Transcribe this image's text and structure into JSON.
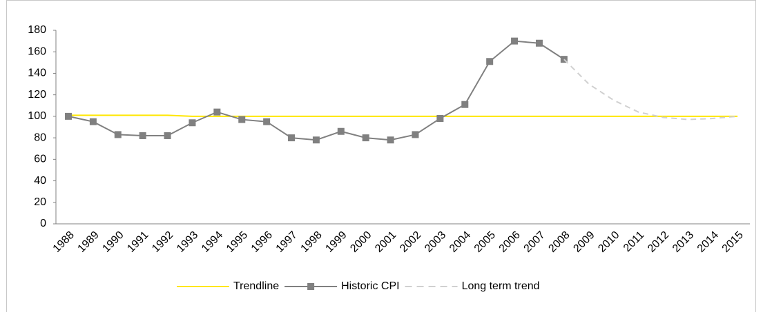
{
  "chart_data": {
    "type": "line",
    "categories": [
      "1988",
      "1989",
      "1990",
      "1991",
      "1992",
      "1993",
      "1994",
      "1995",
      "1996",
      "1997",
      "1998",
      "1999",
      "2000",
      "2001",
      "2002",
      "2003",
      "2004",
      "2005",
      "2006",
      "2007",
      "2008",
      "2009",
      "2010",
      "2011",
      "2012",
      "2013",
      "2014",
      "2015"
    ],
    "series": [
      {
        "name": "Trendline",
        "color": "#ffe600",
        "dashed": false,
        "markers": false,
        "values": [
          101,
          101,
          101,
          101,
          101,
          100,
          100,
          100,
          100,
          100,
          100,
          100,
          100,
          100,
          100,
          100,
          100,
          100,
          100,
          100,
          100,
          100,
          100,
          100,
          100,
          100,
          100,
          100
        ]
      },
      {
        "name": "Historic CPI",
        "color": "#808080",
        "dashed": false,
        "markers": true,
        "values": [
          100,
          95,
          83,
          82,
          82,
          94,
          104,
          97,
          95,
          80,
          78,
          86,
          80,
          78,
          83,
          98,
          111,
          151,
          170,
          168,
          153,
          null,
          null,
          null,
          null,
          null,
          null,
          null
        ]
      },
      {
        "name": "Long term trend",
        "color": "#d0d0d0",
        "dashed": true,
        "markers": false,
        "values": [
          null,
          null,
          null,
          null,
          null,
          null,
          null,
          null,
          null,
          null,
          null,
          null,
          null,
          null,
          null,
          null,
          null,
          null,
          null,
          null,
          153,
          130,
          115,
          104,
          99,
          97,
          98,
          100
        ]
      }
    ],
    "ylim": [
      0,
      180
    ],
    "yticks": [
      0,
      20,
      40,
      60,
      80,
      100,
      120,
      140,
      160,
      180
    ],
    "grid": false,
    "legend": "bottom"
  }
}
